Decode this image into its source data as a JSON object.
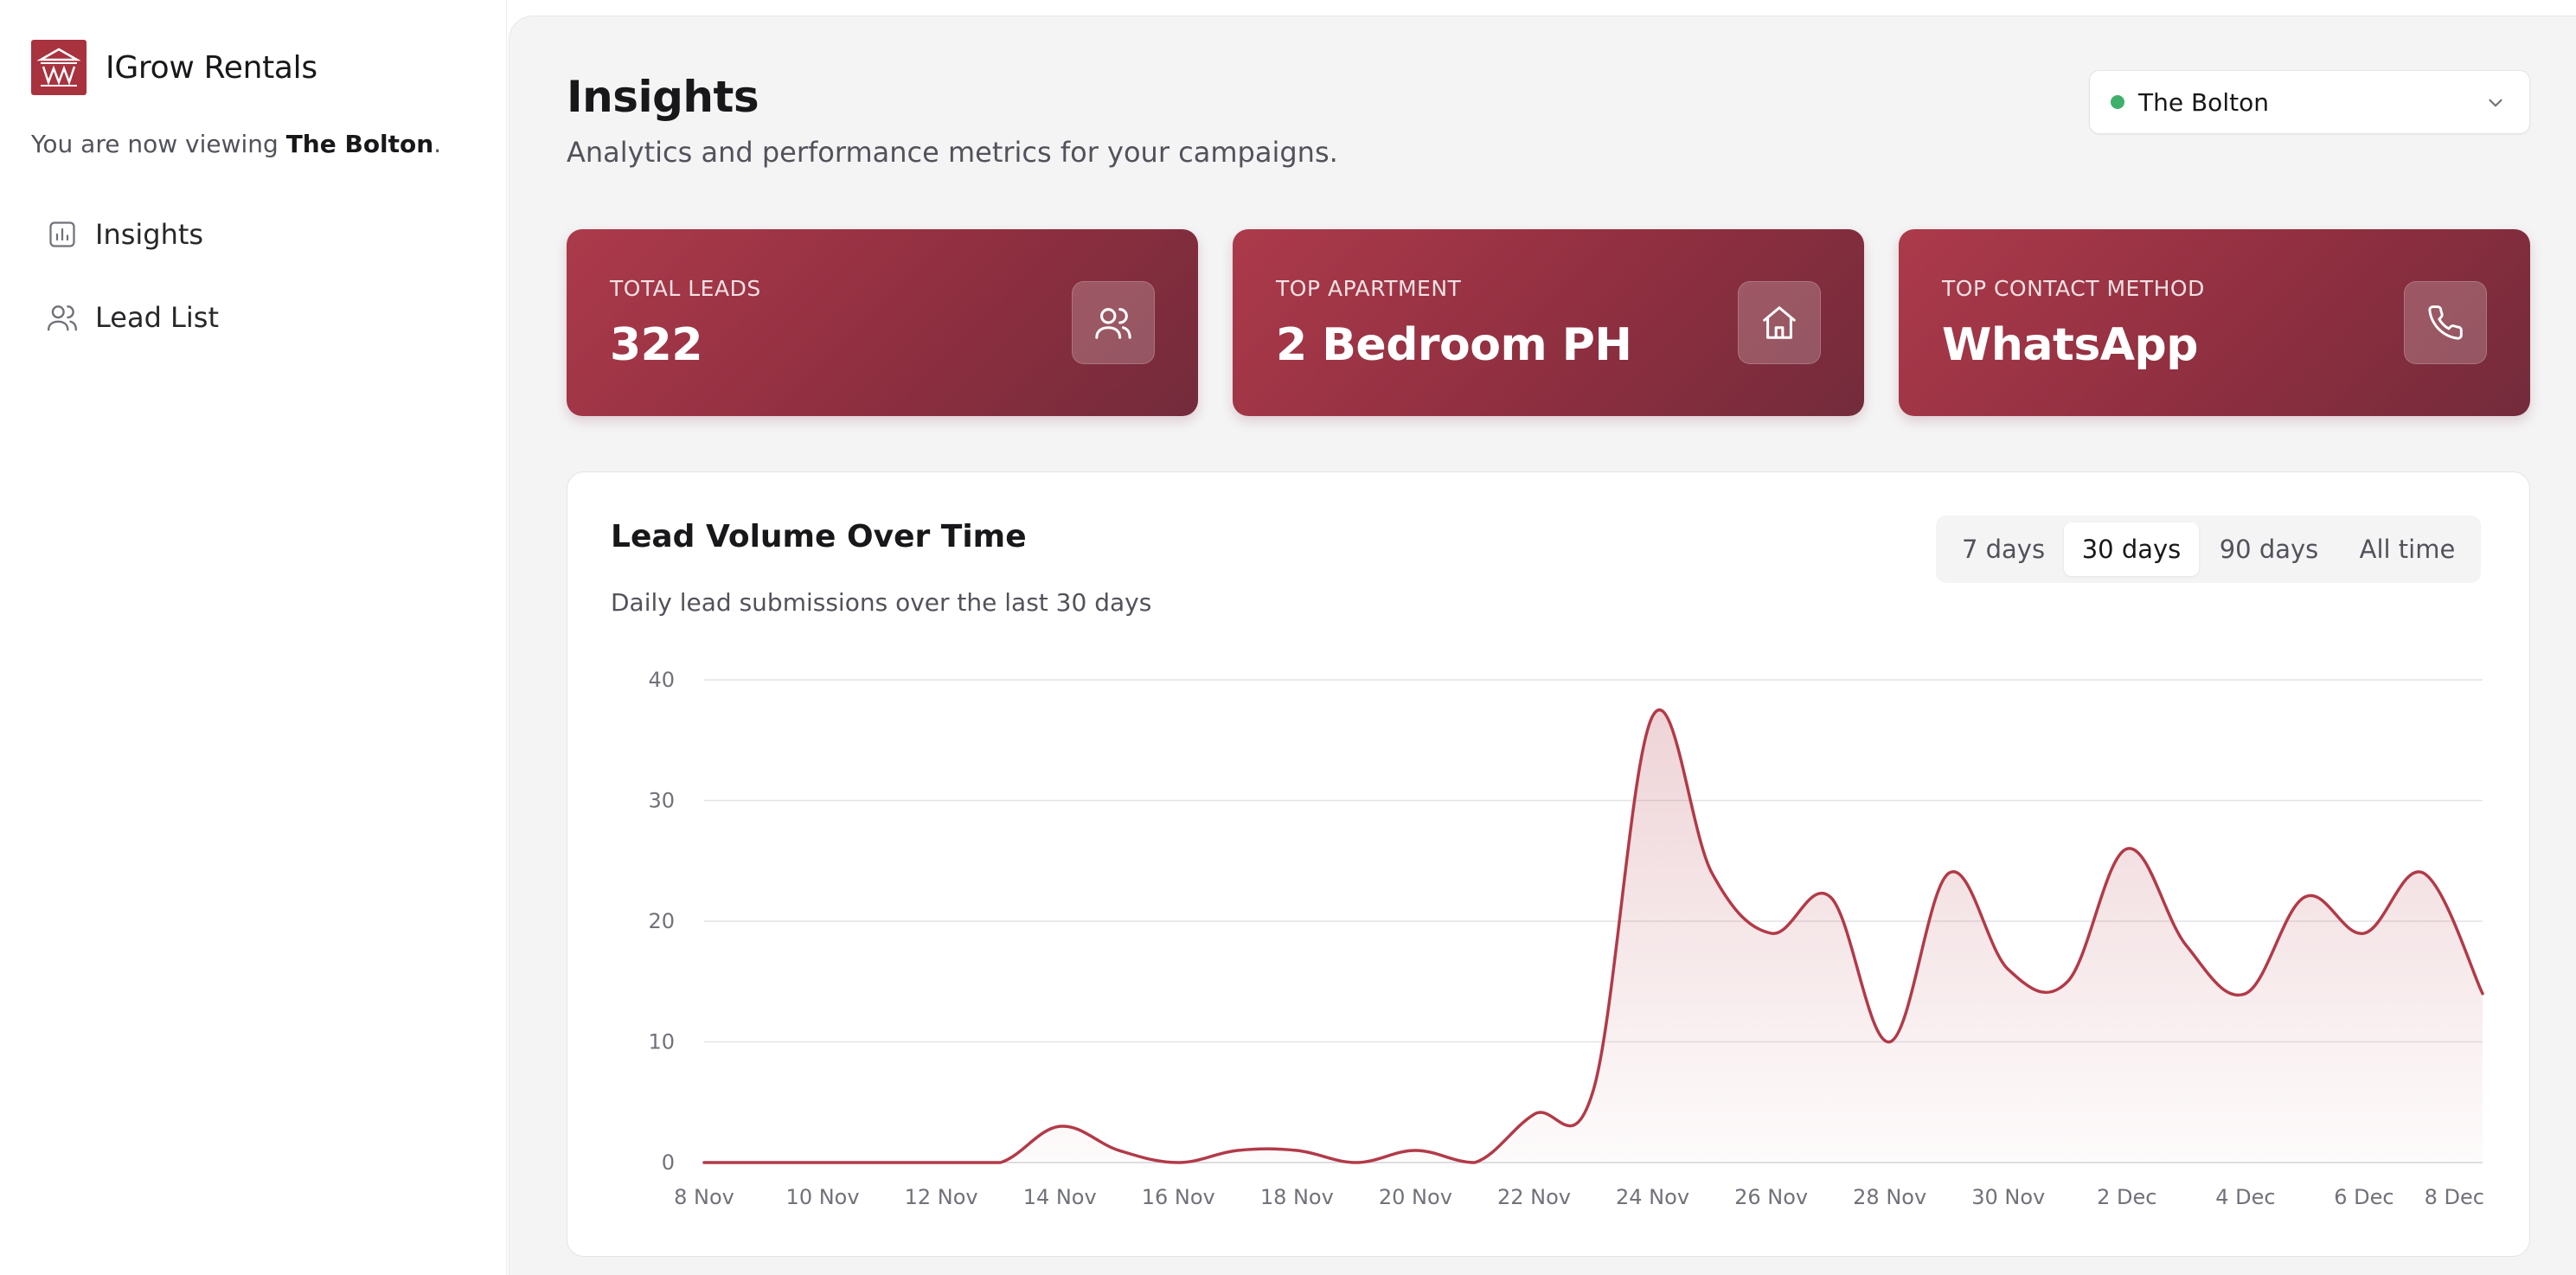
{
  "app": {
    "brand_name": "IGrow Rentals",
    "viewing_prefix": "You are now viewing ",
    "viewing_property": "The Bolton",
    "viewing_suffix": "."
  },
  "sidebar": {
    "items": [
      {
        "label": "Insights",
        "icon": "bar-chart-icon"
      },
      {
        "label": "Lead List",
        "icon": "users-icon"
      }
    ]
  },
  "header": {
    "title": "Insights",
    "subtitle": "Analytics and performance metrics for your campaigns."
  },
  "property_selector": {
    "value": "The Bolton",
    "status_color": "#3fb06b"
  },
  "kpis": [
    {
      "label": "TOTAL LEADS",
      "value": "322",
      "icon": "users-icon"
    },
    {
      "label": "TOP APARTMENT",
      "value": "2 Bedroom PH",
      "icon": "home-icon"
    },
    {
      "label": "TOP CONTACT METHOD",
      "value": "WhatsApp",
      "icon": "phone-icon"
    }
  ],
  "chart_card": {
    "title": "Lead Volume Over Time",
    "subtitle": "Daily lead submissions over the last 30 days",
    "ranges": [
      "7 days",
      "30 days",
      "90 days",
      "All time"
    ],
    "active_range": "30 days"
  },
  "colors": {
    "accent": "#a8323e",
    "line": "#b23a48"
  },
  "chart_data": {
    "type": "area",
    "title": "Lead Volume Over Time",
    "xlabel": "",
    "ylabel": "",
    "ylim": [
      0,
      40
    ],
    "yticks": [
      0,
      10,
      20,
      30,
      40
    ],
    "grid": true,
    "x": [
      "8 Nov",
      "9 Nov",
      "10 Nov",
      "11 Nov",
      "12 Nov",
      "13 Nov",
      "14 Nov",
      "15 Nov",
      "16 Nov",
      "17 Nov",
      "18 Nov",
      "19 Nov",
      "20 Nov",
      "21 Nov",
      "22 Nov",
      "23 Nov",
      "24 Nov",
      "25 Nov",
      "26 Nov",
      "27 Nov",
      "28 Nov",
      "29 Nov",
      "30 Nov",
      "1 Dec",
      "2 Dec",
      "3 Dec",
      "4 Dec",
      "5 Dec",
      "6 Dec",
      "7 Dec",
      "8 Dec"
    ],
    "xtick_labels": [
      "8 Nov",
      "10 Nov",
      "12 Nov",
      "14 Nov",
      "16 Nov",
      "18 Nov",
      "20 Nov",
      "22 Nov",
      "24 Nov",
      "26 Nov",
      "28 Nov",
      "30 Nov",
      "2 Dec",
      "4 Dec",
      "6 Dec",
      "8 Dec"
    ],
    "series": [
      {
        "name": "Leads",
        "values": [
          0,
          0,
          0,
          0,
          0,
          0,
          3,
          1,
          0,
          1,
          1,
          0,
          1,
          0,
          4,
          6,
          37,
          24,
          19,
          22,
          10,
          24,
          16,
          15,
          26,
          18,
          14,
          22,
          19,
          24,
          14
        ]
      }
    ]
  }
}
